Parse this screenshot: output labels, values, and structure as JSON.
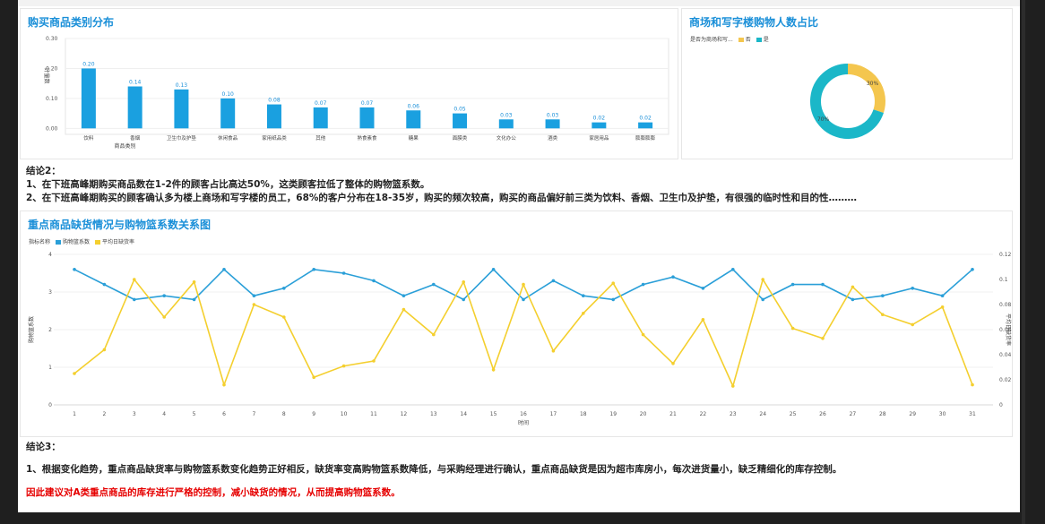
{
  "panels": {
    "category": {
      "title": "购买商品类别分布"
    },
    "ratio": {
      "title": "商场和写字楼购物人数占比",
      "legend_title": "是否为商场和写..."
    },
    "stockout": {
      "title": "重点商品缺货情况与购物篮系数关系图",
      "legend_title": "指标名称"
    }
  },
  "conclusion2": {
    "title": "结论2：",
    "lines": [
      "1、在下班高峰期购买商品数在1-2件的顾客占比高达50%，这类顾客拉低了整体的购物篮系数。",
      "2、在下班高峰期购买的顾客确认多为楼上商场和写字楼的员工，68%的客户分布在18-35岁，购买的频次较高，购买的商品偏好前三类为饮料、香烟、卫生巾及护垫，有很强的临时性和目的性………"
    ]
  },
  "conclusion3": {
    "title": "结论3：",
    "line": "1、根据变化趋势，重点商品缺货率与购物篮系数变化趋势正好相反，缺货率变高购物篮系数降低，与采购经理进行确认，重点商品缺货是因为超市库房小，每次进货量小，缺乏精细化的库存控制。",
    "suggestion": "因此建议对A类重点商品的库存进行严格的控制，减小缺货的情况，从而提高购物篮系数。"
  },
  "chart_data": [
    {
      "type": "bar",
      "categories": [
        "饮料",
        "香烟",
        "卫生巾及护垫",
        "休闲食品",
        "家用纸品类",
        "其他",
        "熟食素食",
        "糖果",
        "面膜类",
        "文化办公",
        "酒类",
        "家居用品",
        "膨膨膨膨"
      ],
      "values": [
        0.2,
        0.14,
        0.13,
        0.1,
        0.08,
        0.07,
        0.07,
        0.06,
        0.05,
        0.03,
        0.03,
        0.02,
        0.02
      ],
      "labels": [
        "0.20",
        "0.14",
        "0.13",
        "0.10",
        "0.08",
        "0.07",
        "0.07",
        "0.06",
        "0.05",
        "0.03",
        "0.03",
        "0.02",
        "0.02"
      ],
      "yticks": [
        "0.00",
        "0.10",
        "0.20",
        "0.30"
      ],
      "ylim": [
        -0.02,
        0.3
      ],
      "xlabel": "商品类别",
      "ylabel": "计量数",
      "color": "#1aa0e0"
    },
    {
      "type": "pie",
      "labels": [
        "是",
        "否"
      ],
      "values": [
        70,
        30
      ],
      "data_labels": [
        "70%",
        "30%"
      ],
      "colors": [
        "#1bb7c8",
        "#f4c64e"
      ]
    },
    {
      "type": "line",
      "x": [
        1,
        2,
        3,
        4,
        5,
        6,
        7,
        8,
        9,
        10,
        11,
        12,
        13,
        14,
        15,
        16,
        17,
        18,
        19,
        20,
        21,
        22,
        23,
        24,
        25,
        26,
        27,
        28,
        29,
        30,
        31
      ],
      "xlabel": "时间",
      "ylabel_left": "购物篮系数",
      "ylabel_right": "平均日缺货率",
      "yticks_left": [
        "0",
        "1",
        "2",
        "3",
        "4"
      ],
      "ylim_left": [
        0,
        4
      ],
      "yticks_right": [
        "0",
        "0.02",
        "0.04",
        "0.06",
        "0.08",
        "0.1",
        "0.12"
      ],
      "ylim_right": [
        0,
        0.12
      ],
      "series": [
        {
          "name": "购物篮系数",
          "axis": "left",
          "color": "#2a9fd8",
          "values": [
            3.6,
            3.2,
            2.8,
            2.9,
            2.8,
            3.6,
            2.9,
            3.1,
            3.6,
            3.5,
            3.3,
            2.9,
            3.2,
            2.8,
            3.6,
            2.8,
            3.3,
            2.9,
            2.8,
            3.2,
            3.4,
            3.1,
            3.6,
            2.8,
            3.2,
            3.2,
            2.8,
            2.9,
            3.1,
            2.9,
            3.6
          ]
        },
        {
          "name": "平均日缺货率",
          "axis": "right",
          "color": "#f4cf2e",
          "values": [
            0.025,
            0.044,
            0.1,
            0.07,
            0.098,
            0.016,
            0.08,
            0.07,
            0.022,
            0.031,
            0.035,
            0.076,
            0.056,
            0.098,
            0.028,
            0.096,
            0.043,
            0.073,
            0.097,
            0.056,
            0.033,
            0.068,
            0.015,
            0.1,
            0.061,
            0.053,
            0.094,
            0.072,
            0.064,
            0.078,
            0.016
          ]
        }
      ]
    }
  ]
}
